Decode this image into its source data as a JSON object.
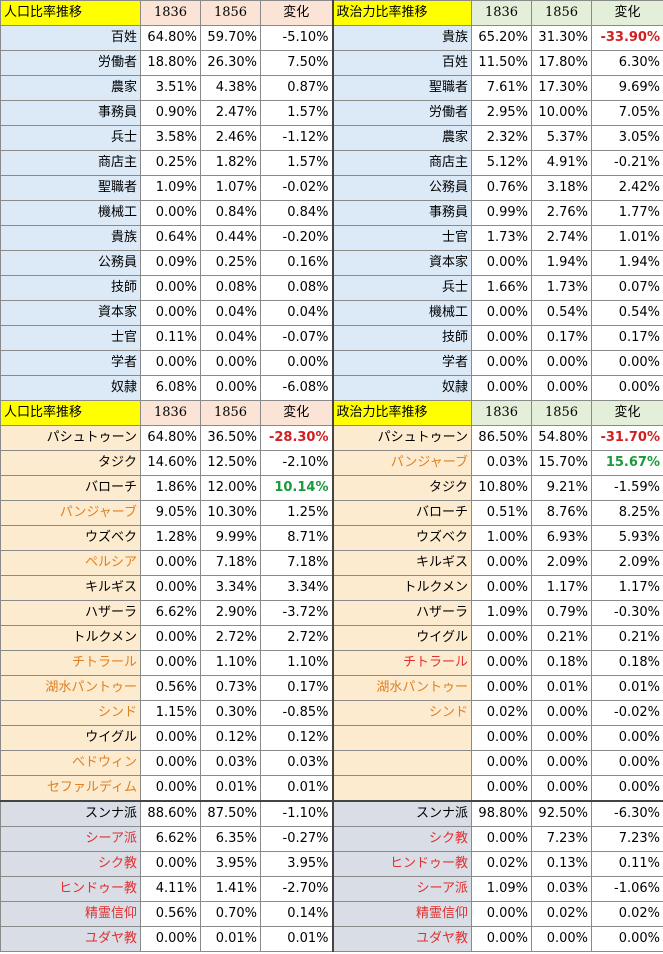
{
  "sections": [
    {
      "key": "jobs",
      "left_title": "人口比率推移",
      "right_title": "政治力比率推移",
      "year_a": "1836",
      "year_b": "1856",
      "change_label": "変化",
      "left_rows": [
        {
          "label": "百姓",
          "a": "64.80%",
          "b": "59.70%",
          "chg": "-5.10%"
        },
        {
          "label": "労働者",
          "a": "18.80%",
          "b": "26.30%",
          "chg": "7.50%"
        },
        {
          "label": "農家",
          "a": "3.51%",
          "b": "4.38%",
          "chg": "0.87%"
        },
        {
          "label": "事務員",
          "a": "0.90%",
          "b": "2.47%",
          "chg": "1.57%"
        },
        {
          "label": "兵士",
          "a": "3.58%",
          "b": "2.46%",
          "chg": "-1.12%"
        },
        {
          "label": "商店主",
          "a": "0.25%",
          "b": "1.82%",
          "chg": "1.57%"
        },
        {
          "label": "聖職者",
          "a": "1.09%",
          "b": "1.07%",
          "chg": "-0.02%"
        },
        {
          "label": "機械工",
          "a": "0.00%",
          "b": "0.84%",
          "chg": "0.84%"
        },
        {
          "label": "貴族",
          "a": "0.64%",
          "b": "0.44%",
          "chg": "-0.20%"
        },
        {
          "label": "公務員",
          "a": "0.09%",
          "b": "0.25%",
          "chg": "0.16%"
        },
        {
          "label": "技師",
          "a": "0.00%",
          "b": "0.08%",
          "chg": "0.08%"
        },
        {
          "label": "資本家",
          "a": "0.00%",
          "b": "0.04%",
          "chg": "0.04%"
        },
        {
          "label": "士官",
          "a": "0.11%",
          "b": "0.04%",
          "chg": "-0.07%"
        },
        {
          "label": "学者",
          "a": "0.00%",
          "b": "0.00%",
          "chg": "0.00%"
        },
        {
          "label": "奴隷",
          "a": "6.08%",
          "b": "0.00%",
          "chg": "-6.08%"
        }
      ],
      "right_rows": [
        {
          "label": "貴族",
          "a": "65.20%",
          "b": "31.30%",
          "chg": "-33.90%",
          "strong": true
        },
        {
          "label": "百姓",
          "a": "11.50%",
          "b": "17.80%",
          "chg": "6.30%"
        },
        {
          "label": "聖職者",
          "a": "7.61%",
          "b": "17.30%",
          "chg": "9.69%"
        },
        {
          "label": "労働者",
          "a": "2.95%",
          "b": "10.00%",
          "chg": "7.05%"
        },
        {
          "label": "農家",
          "a": "2.32%",
          "b": "5.37%",
          "chg": "3.05%"
        },
        {
          "label": "商店主",
          "a": "5.12%",
          "b": "4.91%",
          "chg": "-0.21%"
        },
        {
          "label": "公務員",
          "a": "0.76%",
          "b": "3.18%",
          "chg": "2.42%"
        },
        {
          "label": "事務員",
          "a": "0.99%",
          "b": "2.76%",
          "chg": "1.77%"
        },
        {
          "label": "士官",
          "a": "1.73%",
          "b": "2.74%",
          "chg": "1.01%"
        },
        {
          "label": "資本家",
          "a": "0.00%",
          "b": "1.94%",
          "chg": "1.94%"
        },
        {
          "label": "兵士",
          "a": "1.66%",
          "b": "1.73%",
          "chg": "0.07%"
        },
        {
          "label": "機械工",
          "a": "0.00%",
          "b": "0.54%",
          "chg": "0.54%"
        },
        {
          "label": "技師",
          "a": "0.00%",
          "b": "0.17%",
          "chg": "0.17%"
        },
        {
          "label": "学者",
          "a": "0.00%",
          "b": "0.00%",
          "chg": "0.00%"
        },
        {
          "label": "奴隷",
          "a": "0.00%",
          "b": "0.00%",
          "chg": "0.00%"
        }
      ]
    },
    {
      "key": "eth",
      "left_title": "人口比率推移",
      "right_title": "政治力比率推移",
      "year_a": "1836",
      "year_b": "1856",
      "change_label": "変化",
      "left_rows": [
        {
          "label": "パシュトゥーン",
          "a": "64.80%",
          "b": "36.50%",
          "chg": "-28.30%",
          "strong": true
        },
        {
          "label": "タジク",
          "a": "14.60%",
          "b": "12.50%",
          "chg": "-2.10%"
        },
        {
          "label": "バローチ",
          "a": "1.86%",
          "b": "12.00%",
          "chg": "10.14%",
          "strong": true
        },
        {
          "label": "パンジャーブ",
          "a": "9.05%",
          "b": "10.30%",
          "chg": "1.25%",
          "color": "orange"
        },
        {
          "label": "ウズベク",
          "a": "1.28%",
          "b": "9.99%",
          "chg": "8.71%"
        },
        {
          "label": "ペルシア",
          "a": "0.00%",
          "b": "7.18%",
          "chg": "7.18%",
          "color": "orange"
        },
        {
          "label": "キルギス",
          "a": "0.00%",
          "b": "3.34%",
          "chg": "3.34%"
        },
        {
          "label": "ハザーラ",
          "a": "6.62%",
          "b": "2.90%",
          "chg": "-3.72%"
        },
        {
          "label": "トルクメン",
          "a": "0.00%",
          "b": "2.72%",
          "chg": "2.72%"
        },
        {
          "label": "チトラール",
          "a": "0.00%",
          "b": "1.10%",
          "chg": "1.10%",
          "color": "orange"
        },
        {
          "label": "湖水パントゥー",
          "a": "0.56%",
          "b": "0.73%",
          "chg": "0.17%",
          "color": "orange"
        },
        {
          "label": "シンド",
          "a": "1.15%",
          "b": "0.30%",
          "chg": "-0.85%",
          "color": "orange"
        },
        {
          "label": "ウイグル",
          "a": "0.00%",
          "b": "0.12%",
          "chg": "0.12%"
        },
        {
          "label": "ベドウィン",
          "a": "0.00%",
          "b": "0.03%",
          "chg": "0.03%",
          "color": "orange"
        },
        {
          "label": "セファルディム",
          "a": "0.00%",
          "b": "0.01%",
          "chg": "0.01%",
          "color": "orange"
        }
      ],
      "right_rows": [
        {
          "label": "パシュトゥーン",
          "a": "86.50%",
          "b": "54.80%",
          "chg": "-31.70%",
          "strong": true
        },
        {
          "label": "パンジャーブ",
          "a": "0.03%",
          "b": "15.70%",
          "chg": "15.67%",
          "strong": true,
          "color": "orange"
        },
        {
          "label": "タジク",
          "a": "10.80%",
          "b": "9.21%",
          "chg": "-1.59%"
        },
        {
          "label": "バローチ",
          "a": "0.51%",
          "b": "8.76%",
          "chg": "8.25%"
        },
        {
          "label": "ウズベク",
          "a": "1.00%",
          "b": "6.93%",
          "chg": "5.93%"
        },
        {
          "label": "キルギス",
          "a": "0.00%",
          "b": "2.09%",
          "chg": "2.09%"
        },
        {
          "label": "トルクメン",
          "a": "0.00%",
          "b": "1.17%",
          "chg": "1.17%"
        },
        {
          "label": "ハザーラ",
          "a": "1.09%",
          "b": "0.79%",
          "chg": "-0.30%"
        },
        {
          "label": "ウイグル",
          "a": "0.00%",
          "b": "0.21%",
          "chg": "0.21%"
        },
        {
          "label": "チトラール",
          "a": "0.00%",
          "b": "0.18%",
          "chg": "0.18%",
          "color": "red"
        },
        {
          "label": "湖水パントゥー",
          "a": "0.00%",
          "b": "0.01%",
          "chg": "0.01%",
          "color": "orange"
        },
        {
          "label": "シンド",
          "a": "0.02%",
          "b": "0.00%",
          "chg": "-0.02%",
          "color": "orange"
        },
        {
          "label": "",
          "a": "0.00%",
          "b": "0.00%",
          "chg": "0.00%"
        },
        {
          "label": "",
          "a": "0.00%",
          "b": "0.00%",
          "chg": "0.00%"
        },
        {
          "label": "",
          "a": "0.00%",
          "b": "0.00%",
          "chg": "0.00%"
        }
      ]
    },
    {
      "key": "rel",
      "left_rows": [
        {
          "label": "スンナ派",
          "a": "88.60%",
          "b": "87.50%",
          "chg": "-1.10%"
        },
        {
          "label": "シーア派",
          "a": "6.62%",
          "b": "6.35%",
          "chg": "-0.27%",
          "color": "red"
        },
        {
          "label": "シク教",
          "a": "0.00%",
          "b": "3.95%",
          "chg": "3.95%",
          "color": "red"
        },
        {
          "label": "ヒンドゥー教",
          "a": "4.11%",
          "b": "1.41%",
          "chg": "-2.70%",
          "color": "red"
        },
        {
          "label": "精霊信仰",
          "a": "0.56%",
          "b": "0.70%",
          "chg": "0.14%",
          "color": "red"
        },
        {
          "label": "ユダヤ教",
          "a": "0.00%",
          "b": "0.01%",
          "chg": "0.01%",
          "color": "red"
        }
      ],
      "right_rows": [
        {
          "label": "スンナ派",
          "a": "98.80%",
          "b": "92.50%",
          "chg": "-6.30%"
        },
        {
          "label": "シク教",
          "a": "0.00%",
          "b": "7.23%",
          "chg": "7.23%",
          "color": "red"
        },
        {
          "label": "ヒンドゥー教",
          "a": "0.02%",
          "b": "0.13%",
          "chg": "0.11%",
          "color": "red"
        },
        {
          "label": "シーア派",
          "a": "1.09%",
          "b": "0.03%",
          "chg": "-1.06%",
          "color": "red"
        },
        {
          "label": "精霊信仰",
          "a": "0.00%",
          "b": "0.02%",
          "chg": "0.02%",
          "color": "red"
        },
        {
          "label": "ユダヤ教",
          "a": "0.00%",
          "b": "0.00%",
          "chg": "0.00%",
          "color": "red"
        }
      ]
    }
  ]
}
